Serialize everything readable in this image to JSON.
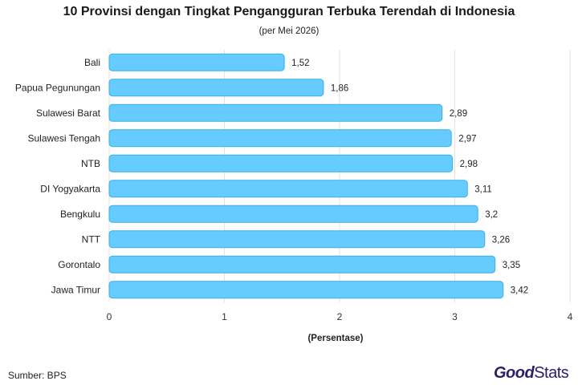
{
  "header": {
    "title": "10 Provinsi dengan Tingkat Pengangguran Terbuka Terendah di Indonesia",
    "subtitle": "(per Mei 2026)"
  },
  "footer": {
    "source": "Sumber: BPS",
    "brand_part1": "Good",
    "brand_part2": "Stats"
  },
  "colors": {
    "bar_fill": "#66ccff",
    "bar_stroke": "#3aaee6",
    "gridline": "#e3e3e3",
    "brand": "#2a1f6b"
  },
  "chart_data": {
    "type": "bar",
    "orientation": "horizontal",
    "categories": [
      "Bali",
      "Papua Pegunungan",
      "Sulawesi Barat",
      "Sulawesi Tengah",
      "NTB",
      "DI Yogyakarta",
      "Bengkulu",
      "NTT",
      "Gorontalo",
      "Jawa Timur"
    ],
    "values": [
      1.52,
      1.86,
      2.89,
      2.97,
      2.98,
      3.11,
      3.2,
      3.26,
      3.35,
      3.42
    ],
    "value_labels": [
      "1,52",
      "1,86",
      "2,89",
      "2,97",
      "2,98",
      "3,11",
      "3,2",
      "3,26",
      "3,35",
      "3,42"
    ],
    "xlabel": "(Persentase)",
    "ylabel": "",
    "xlim": [
      0,
      4
    ],
    "x_ticks": [
      0,
      1,
      2,
      3,
      4
    ],
    "grid": true,
    "legend": "none"
  }
}
